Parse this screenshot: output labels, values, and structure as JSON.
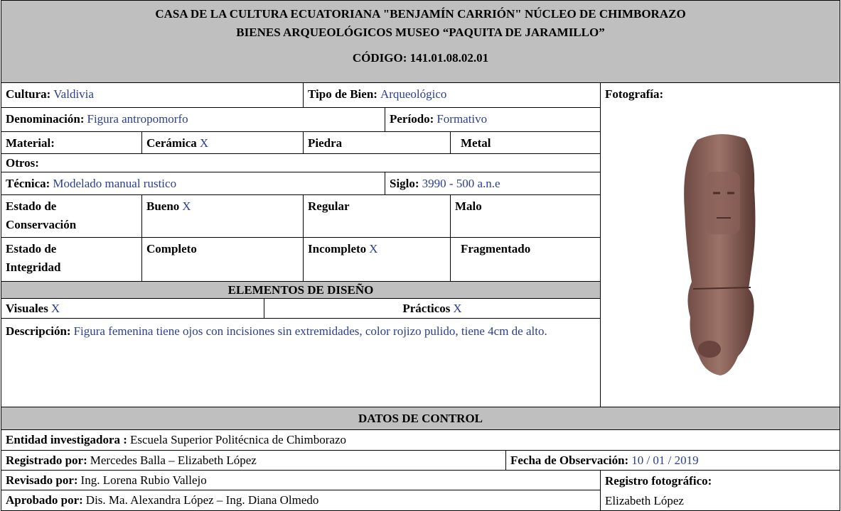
{
  "header": {
    "lines": [
      "CASA DE LA CULTURA ECUATORIANA \"BENJAMÍN CARRIÓN\" NÚCLEO DE CHIMBORAZO",
      "BIENES ARQUEOLÓGICOS MUSEO “PAQUITA DE JARAMILLO”",
      "CÓDIGO: 141.01.08.02.01"
    ]
  },
  "cultura": {
    "label": "Cultura:",
    "value": "Valdivia"
  },
  "tipo_de_bien": {
    "label": "Tipo de Bien:",
    "value": "Arqueológico"
  },
  "photo": {
    "label": "Fotografía:"
  },
  "denominacion": {
    "label": "Denominación:",
    "value": "Figura antropomorfo"
  },
  "periodo": {
    "label": "Período:",
    "value": "Formativo"
  },
  "material": {
    "label": "Material:",
    "options": [
      {
        "label": "Cerámica",
        "mark": "X"
      },
      {
        "label": "Piedra"
      },
      {
        "label": "Metal"
      }
    ]
  },
  "otros": {
    "label": "Otros:"
  },
  "tecnica": {
    "label": "Técnica:",
    "value": "Modelado manual rustico"
  },
  "siglo": {
    "label": "Siglo:",
    "value": "3990 - 500 a.n.e"
  },
  "conservacion": {
    "label": "Estado de Conservación",
    "options": [
      {
        "label": "Bueno",
        "mark": "X"
      },
      {
        "label": "Regular"
      },
      {
        "label": "Malo"
      }
    ]
  },
  "integridad": {
    "label": "Estado de Integridad",
    "options": [
      {
        "label": "Completo"
      },
      {
        "label": "Incompleto",
        "mark": "X"
      },
      {
        "label": "Fragmentado"
      }
    ]
  },
  "design_elements": {
    "title": "ELEMENTOS DE DISEÑO",
    "options": [
      {
        "label": "Visuales",
        "mark": "X"
      },
      {
        "label": "Prácticos",
        "mark": "X"
      }
    ]
  },
  "descripcion": {
    "label": "Descripción:",
    "value": "Figura femenina tiene ojos con incisiones sin extremidades, color rojizo pulido, tiene 4cm de alto."
  },
  "control": {
    "title": "DATOS DE CONTROL",
    "entidad": {
      "label": "Entidad investigadora :",
      "value": "Escuela Superior Politécnica de Chimborazo"
    },
    "registrado": {
      "label": "Registrado por:",
      "value": "Mercedes Balla – Elizabeth López"
    },
    "fecha": {
      "label": "Fecha de Observación:",
      "value": "10 / 01 / 2019"
    },
    "revisado": {
      "label": "Revisado por:",
      "value": "Ing. Lorena Rubio Vallejo"
    },
    "registro_fotografico": {
      "label": "Registro fotográfico:",
      "value": "Elizabeth López"
    },
    "aprobado": {
      "label": "Aprobado por:",
      "value": "Dis. Ma. Alexandra López – Ing. Diana Olmedo"
    }
  }
}
